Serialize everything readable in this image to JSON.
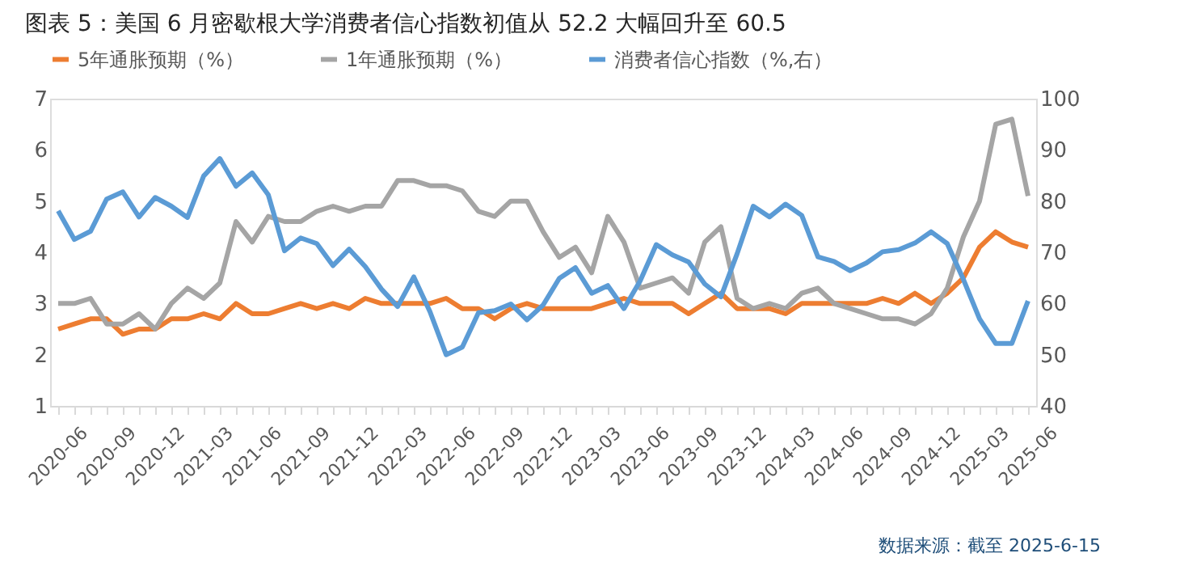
{
  "chart_data": {
    "type": "line",
    "title": "图表 5：美国 6 月密歇根大学消费者信心指数初值从 52.2 大幅回升至 60.5",
    "categories": [
      "2020-06",
      null,
      null,
      "2020-09",
      null,
      null,
      "2020-12",
      null,
      null,
      "2021-03",
      null,
      null,
      "2021-06",
      null,
      null,
      "2021-09",
      null,
      null,
      "2021-12",
      null,
      null,
      "2022-03",
      null,
      null,
      "2022-06",
      null,
      null,
      "2022-09",
      null,
      null,
      "2022-12",
      null,
      null,
      "2023-03",
      null,
      null,
      "2023-06",
      null,
      null,
      "2023-09",
      null,
      null,
      "2023-12",
      null,
      null,
      "2024-03",
      null,
      null,
      "2024-06",
      null,
      null,
      "2024-09",
      null,
      null,
      "2024-12",
      null,
      null,
      "2025-03",
      null,
      null,
      "2025-06"
    ],
    "series": [
      {
        "name": "5年通胀预期（%）",
        "color": "#ed7d31",
        "values": [
          2.5,
          2.6,
          2.7,
          2.7,
          2.4,
          2.5,
          2.5,
          2.7,
          2.7,
          2.8,
          2.7,
          3.0,
          2.8,
          2.8,
          2.9,
          3.0,
          2.9,
          3.0,
          2.9,
          3.1,
          3.0,
          3.0,
          3.0,
          3.0,
          3.1,
          2.9,
          2.9,
          2.7,
          2.9,
          3.0,
          2.9,
          2.9,
          2.9,
          2.9,
          3.0,
          3.1,
          3.0,
          3.0,
          3.0,
          2.8,
          3.0,
          3.2,
          2.9,
          2.9,
          2.9,
          2.8,
          3.0,
          3.0,
          3.0,
          3.0,
          3.0,
          3.1,
          3.0,
          3.2,
          3.0,
          3.2,
          3.5,
          4.1,
          4.4,
          4.2,
          4.1
        ]
      },
      {
        "name": "1年通胀预期（%）",
        "color": "#a5a5a5",
        "values": [
          3.0,
          3.0,
          3.1,
          2.6,
          2.6,
          2.8,
          2.5,
          3.0,
          3.3,
          3.1,
          3.4,
          4.6,
          4.2,
          4.7,
          4.6,
          4.6,
          4.8,
          4.9,
          4.8,
          4.9,
          4.9,
          5.4,
          5.4,
          5.3,
          5.3,
          5.2,
          4.8,
          4.7,
          5.0,
          5.0,
          4.4,
          3.9,
          4.1,
          3.6,
          4.7,
          4.2,
          3.3,
          3.4,
          3.5,
          3.2,
          4.2,
          4.5,
          3.1,
          2.9,
          3.0,
          2.9,
          3.2,
          3.3,
          3.0,
          2.9,
          2.8,
          2.7,
          2.7,
          2.6,
          2.8,
          3.3,
          4.3,
          5.0,
          6.5,
          6.6,
          5.1
        ]
      },
      {
        "name": "消费者信心指数（%,右）",
        "color": "#5b9bd5",
        "axis": "y2",
        "values": [
          78.1,
          72.5,
          74.1,
          80.4,
          81.8,
          76.9,
          80.7,
          79.0,
          76.8,
          84.9,
          88.3,
          82.9,
          85.5,
          81.2,
          70.3,
          72.8,
          71.7,
          67.4,
          70.6,
          67.2,
          62.8,
          59.4,
          65.2,
          58.4,
          50.0,
          51.5,
          58.2,
          58.6,
          59.9,
          56.8,
          59.7,
          64.9,
          67.0,
          62.0,
          63.5,
          59.0,
          64.4,
          71.5,
          69.5,
          68.1,
          63.8,
          61.3,
          69.7,
          79.0,
          76.9,
          79.4,
          77.2,
          69.1,
          68.2,
          66.4,
          67.9,
          70.1,
          70.5,
          71.8,
          74.0,
          71.7,
          64.7,
          57.0,
          52.2,
          52.2,
          60.5
        ]
      }
    ],
    "ylim": [
      1,
      7
    ],
    "yticks": [
      1,
      2,
      3,
      4,
      5,
      6,
      7
    ],
    "y2lim": [
      40,
      100
    ],
    "y2ticks": [
      40,
      50,
      60,
      70,
      80,
      90,
      100
    ],
    "legend": "top",
    "grid": false,
    "marker": "none",
    "line_style": "solid",
    "annotations": [
      "数据来源：截至 2025-6-15"
    ]
  }
}
